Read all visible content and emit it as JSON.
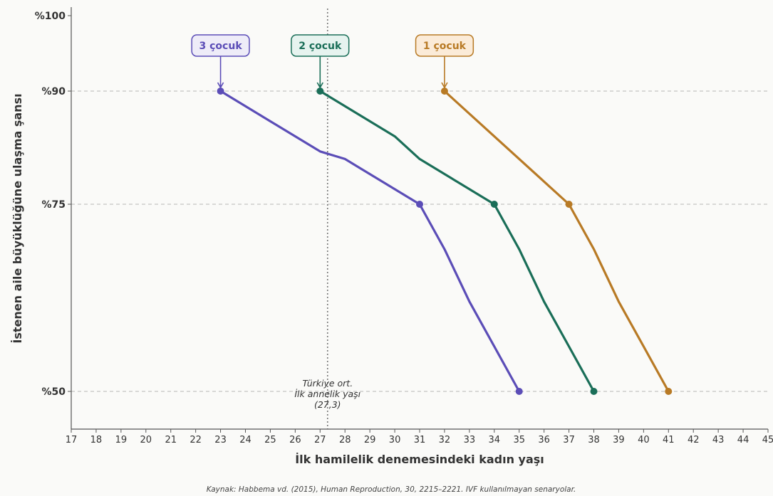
{
  "chart_data": {
    "type": "line",
    "xlabel": "İlk hamilelik denemesindeki kadın yaşı",
    "ylabel": "İstenen aile büyüklüğüne ulaşma şansı",
    "xlim": [
      17,
      45
    ],
    "ylim": [
      45,
      100
    ],
    "x_ticks": [
      17,
      18,
      19,
      20,
      21,
      22,
      23,
      24,
      25,
      26,
      27,
      28,
      29,
      30,
      31,
      32,
      33,
      34,
      35,
      36,
      37,
      38,
      39,
      40,
      41,
      42,
      43,
      44,
      45
    ],
    "y_ticks": [
      {
        "value": 50,
        "label": "%50"
      },
      {
        "value": 75,
        "label": "%75"
      },
      {
        "value": 90,
        "label": "%90"
      },
      {
        "value": 100,
        "label": "%100"
      }
    ],
    "gridlines_y": [
      50,
      75,
      90
    ],
    "grid": "horizontal dashed",
    "reference_line": {
      "x": 27.3,
      "lines": [
        "Türkiye ort.",
        "İlk annelik yaşı",
        "(27,3)"
      ]
    },
    "series": [
      {
        "name": "3 çocuk",
        "color": "#5b4db7",
        "points": [
          [
            23,
            90
          ],
          [
            27,
            82
          ],
          [
            28,
            81
          ],
          [
            31,
            75
          ],
          [
            32,
            69
          ],
          [
            33,
            62
          ],
          [
            34,
            56
          ],
          [
            35,
            50
          ]
        ],
        "markers": [
          [
            23,
            90
          ],
          [
            31,
            75
          ],
          [
            35,
            50
          ]
        ]
      },
      {
        "name": "2 çocuk",
        "color": "#1a6e58",
        "points": [
          [
            27,
            90
          ],
          [
            30,
            84
          ],
          [
            31,
            81
          ],
          [
            34,
            75
          ],
          [
            35,
            69
          ],
          [
            36,
            62
          ],
          [
            37,
            56
          ],
          [
            38,
            50
          ]
        ],
        "markers": [
          [
            27,
            90
          ],
          [
            34,
            75
          ],
          [
            38,
            50
          ]
        ]
      },
      {
        "name": "1 çocuk",
        "color": "#b87a25",
        "points": [
          [
            32,
            90
          ],
          [
            37,
            75
          ],
          [
            38,
            69
          ],
          [
            39,
            62
          ],
          [
            40,
            56
          ],
          [
            41,
            50
          ]
        ],
        "markers": [
          [
            32,
            90
          ],
          [
            37,
            75
          ],
          [
            41,
            50
          ]
        ]
      }
    ],
    "source": "Kaynak: Habbema vd. (2015), Human Reproduction, 30, 2215–2221. IVF kullanılmayan senaryolar."
  }
}
